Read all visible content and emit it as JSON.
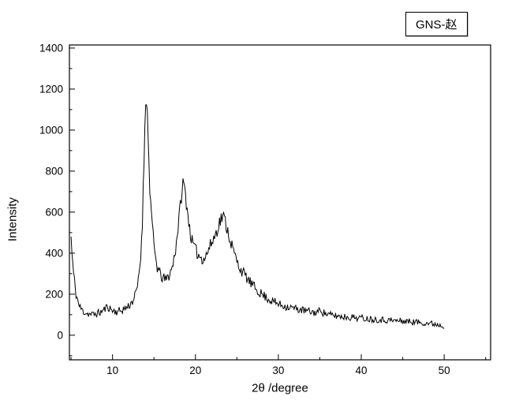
{
  "chart_data": {
    "type": "line",
    "title": "",
    "xlabel": "2θ /degree",
    "ylabel": "Intensity",
    "legend_label": "GNS-赵",
    "xlim": [
      4.8,
      55.6
    ],
    "ylim": [
      -120,
      1415
    ],
    "xticks": [
      10,
      20,
      30,
      40,
      50
    ],
    "yticks": [
      0,
      200,
      400,
      600,
      800,
      1000,
      1200,
      1400
    ],
    "x_minor_step": 5,
    "y_minor_step": 100,
    "grid": false,
    "legend_position": "top-right-outside",
    "line_color": "#000000",
    "background_color": "#ffffff",
    "noise": {
      "seed": 11,
      "base": 5,
      "sqrt_scale": 1.3,
      "step": 0.1
    },
    "peaks_2theta": [
      14.0,
      18.6,
      23.3
    ],
    "peak_intensities": [
      1230,
      770,
      600
    ],
    "points": [
      [
        5.0,
        480
      ],
      [
        5.1,
        400
      ],
      [
        5.3,
        300
      ],
      [
        5.6,
        200
      ],
      [
        6.0,
        140
      ],
      [
        6.5,
        115
      ],
      [
        7.0,
        105
      ],
      [
        7.5,
        100
      ],
      [
        8.0,
        105
      ],
      [
        8.5,
        110
      ],
      [
        9.0,
        125
      ],
      [
        9.4,
        140
      ],
      [
        9.7,
        130
      ],
      [
        10.0,
        120
      ],
      [
        10.5,
        115
      ],
      [
        11.0,
        120
      ],
      [
        11.5,
        130
      ],
      [
        12.0,
        145
      ],
      [
        12.4,
        165
      ],
      [
        12.8,
        200
      ],
      [
        13.1,
        260
      ],
      [
        13.4,
        380
      ],
      [
        13.6,
        560
      ],
      [
        13.8,
        850
      ],
      [
        13.95,
        1120
      ],
      [
        14.05,
        1200
      ],
      [
        14.15,
        1130
      ],
      [
        14.3,
        950
      ],
      [
        14.5,
        720
      ],
      [
        14.8,
        520
      ],
      [
        15.1,
        400
      ],
      [
        15.4,
        330
      ],
      [
        15.7,
        300
      ],
      [
        16.0,
        280
      ],
      [
        16.4,
        270
      ],
      [
        16.8,
        290
      ],
      [
        17.2,
        330
      ],
      [
        17.6,
        420
      ],
      [
        18.0,
        560
      ],
      [
        18.3,
        680
      ],
      [
        18.55,
        750
      ],
      [
        18.75,
        700
      ],
      [
        19.0,
        620
      ],
      [
        19.3,
        520
      ],
      [
        19.6,
        455
      ],
      [
        20.0,
        415
      ],
      [
        20.4,
        390
      ],
      [
        20.8,
        375
      ],
      [
        21.2,
        380
      ],
      [
        21.6,
        420
      ],
      [
        22.0,
        455
      ],
      [
        22.4,
        490
      ],
      [
        22.8,
        540
      ],
      [
        23.1,
        570
      ],
      [
        23.35,
        580
      ],
      [
        23.6,
        555
      ],
      [
        23.9,
        510
      ],
      [
        24.3,
        450
      ],
      [
        24.7,
        395
      ],
      [
        25.1,
        350
      ],
      [
        25.5,
        320
      ],
      [
        26.0,
        290
      ],
      [
        26.5,
        262
      ],
      [
        27.0,
        238
      ],
      [
        27.5,
        218
      ],
      [
        28.0,
        200
      ],
      [
        28.5,
        186
      ],
      [
        29.0,
        172
      ],
      [
        29.5,
        162
      ],
      [
        30.0,
        152
      ],
      [
        30.5,
        146
      ],
      [
        31.0,
        140
      ],
      [
        31.5,
        135
      ],
      [
        32.0,
        130
      ],
      [
        32.5,
        126
      ],
      [
        33.0,
        121
      ],
      [
        33.5,
        117
      ],
      [
        34.0,
        113
      ],
      [
        34.5,
        110
      ],
      [
        35.0,
        118
      ],
      [
        35.15,
        135
      ],
      [
        35.3,
        112
      ],
      [
        36.0,
        100
      ],
      [
        36.5,
        97
      ],
      [
        37.0,
        94
      ],
      [
        37.5,
        92
      ],
      [
        38.0,
        90
      ],
      [
        39.0,
        87
      ],
      [
        40.0,
        84
      ],
      [
        41.0,
        80
      ],
      [
        42.0,
        77
      ],
      [
        43.0,
        74
      ],
      [
        44.0,
        71
      ],
      [
        45.0,
        69
      ],
      [
        46.0,
        66
      ],
      [
        47.0,
        63
      ],
      [
        48.0,
        59
      ],
      [
        49.0,
        54
      ],
      [
        49.5,
        50
      ],
      [
        50.0,
        46
      ]
    ]
  }
}
